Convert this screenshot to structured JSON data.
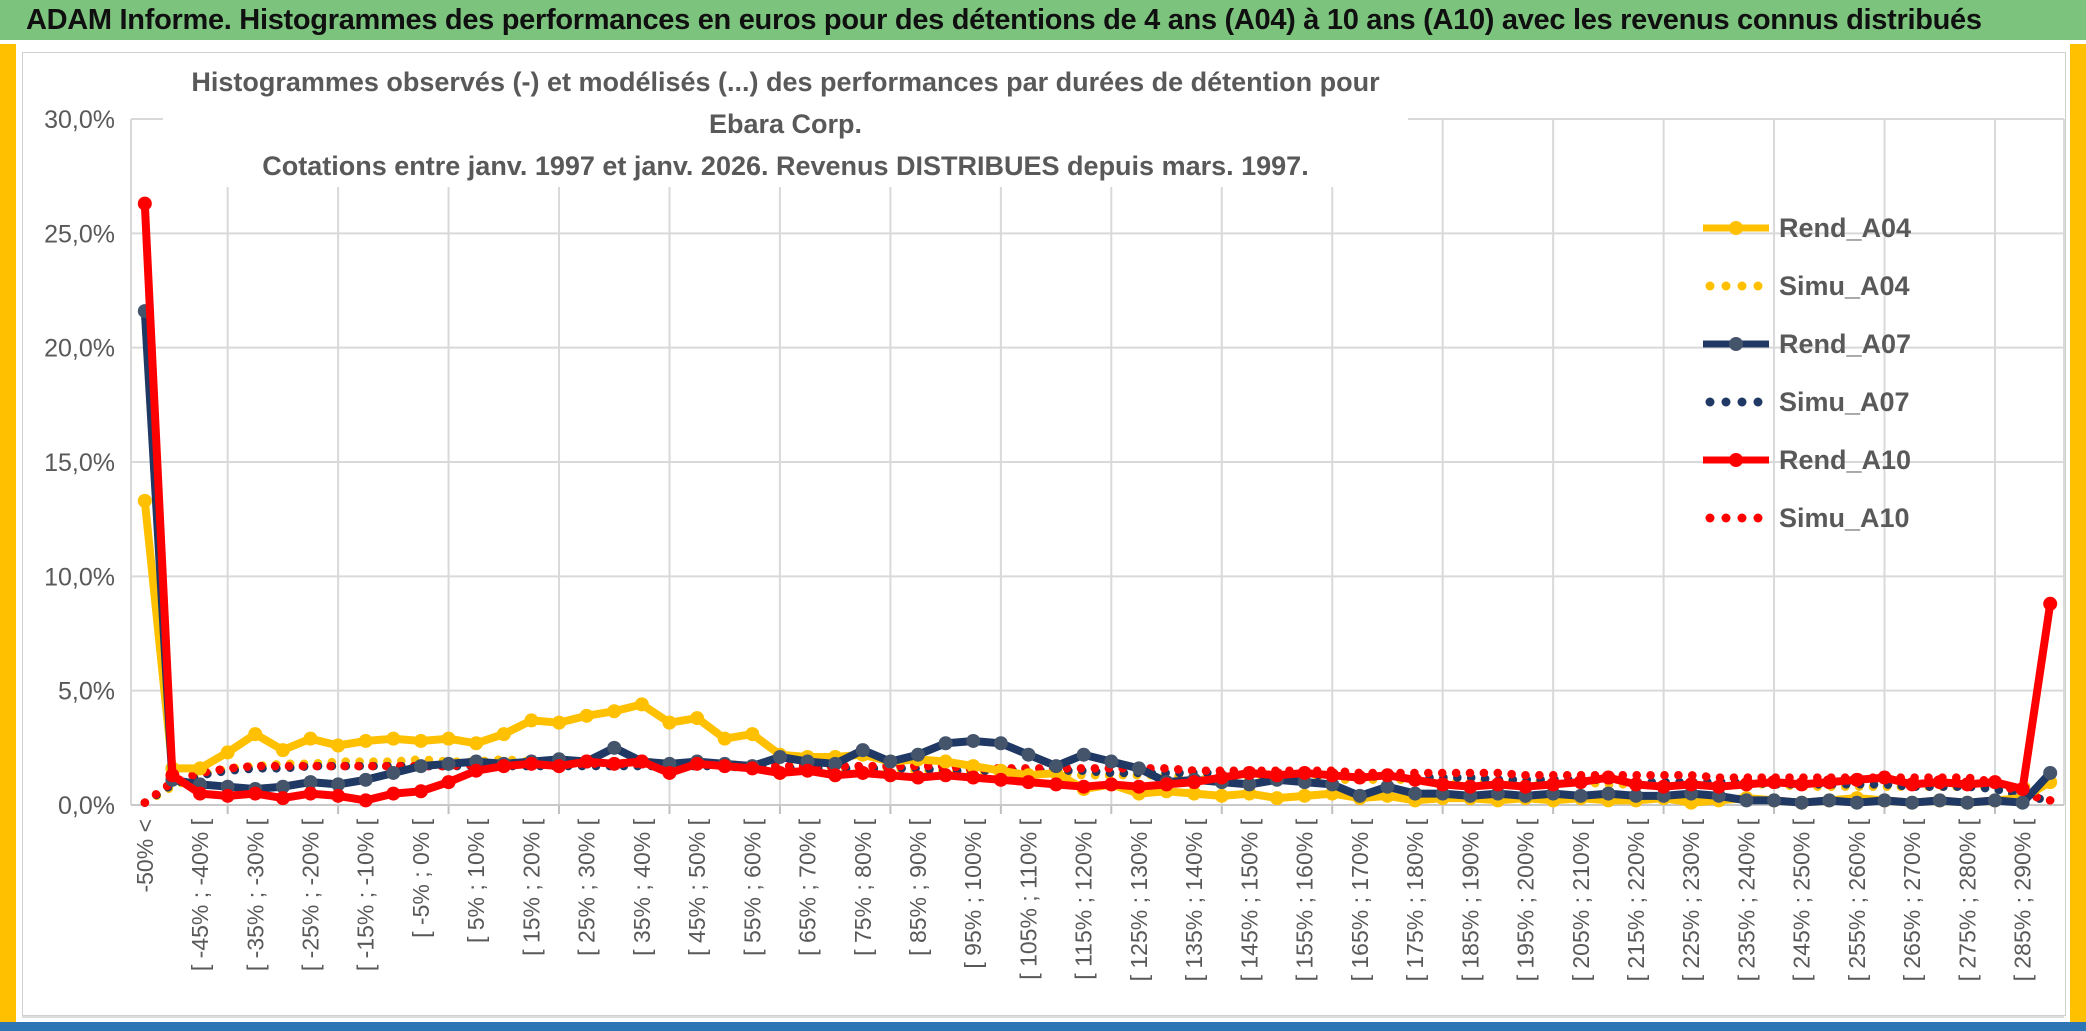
{
  "header": {
    "title": "ADAM Informe. Histogrammes des performances en euros pour des détentions de 4 ans (A04) à 10 ans (A10) avec les revenus connus distribués"
  },
  "chart": {
    "title_line1": "Histogrammes observés (-) et modélisés (...) des performances par durées de détention pour Ebara Corp.",
    "title_line2": "Cotations entre janv. 1997 et janv. 2026. Revenus DISTRIBUES depuis mars. 1997."
  },
  "colors": {
    "header_bg": "#7CC47E",
    "edge_strip": "#FFC000",
    "bottom_bar": "#2E75B6",
    "grid": "#D9D9D9",
    "axis_text": "#595959",
    "yellow": "#FFC000",
    "navy": "#1F3864",
    "navy_marker": "#44546A",
    "red": "#FF0000"
  },
  "chart_data": {
    "type": "line",
    "title": "Histogrammes observés (-) et modélisés (...) des performances par durées de détention pour Ebara Corp. Cotations entre janv. 1997 et janv. 2026. Revenus DISTRIBUES depuis mars. 1997.",
    "legend_position": "right",
    "grid": true,
    "n_bins": 70,
    "y_axis": {
      "min": 0,
      "max": 30,
      "step": 5,
      "unit": "%",
      "tick_labels": [
        "0,0%",
        "5,0%",
        "10,0%",
        "15,0%",
        "20,0%",
        "25,0%",
        "30,0%"
      ]
    },
    "x_axis": {
      "label_interval": 2,
      "tick_labels": [
        "-50% <",
        "[ -45% ; -40% [",
        "[ -35% ; -30% [",
        "[ -25% ; -20% [",
        "[ -15% ; -10% [",
        "[ -5% ; 0% [",
        "[ 5% ; 10% [",
        "[ 15% ; 20% [",
        "[ 25% ; 30% [",
        "[ 35% ; 40% [",
        "[ 45% ; 50% [",
        "[ 55% ; 60% [",
        "[ 65% ; 70% [",
        "[ 75% ; 80% [",
        "[ 85% ; 90% [",
        "[ 95% ; 100% [",
        "[ 105% ; 110% [",
        "[ 115% ; 120% [",
        "[ 125% ; 130% [",
        "[ 135% ; 140% [",
        "[ 145% ; 150% [",
        "[ 155% ; 160% [",
        "[ 165% ; 170% [",
        "[ 175% ; 180% [",
        "[ 185% ; 190% [",
        "[ 195% ; 200% [",
        "[ 205% ; 210% [",
        "[ 215% ; 220% [",
        "[ 225% ; 230% [",
        "[ 235% ; 240% [",
        "[ 245% ; 250% [",
        "[ 255% ; 260% [",
        "[ 265% ; 270% [",
        "[ 275% ; 280% [",
        "[ 285% ; 290% ["
      ]
    },
    "series": [
      {
        "name": "Rend_A04",
        "color": "#FFC000",
        "marker_color": "#FFC000",
        "line_style": "solid",
        "values": [
          13.3,
          1.6,
          1.6,
          2.3,
          3.1,
          2.4,
          2.9,
          2.6,
          2.8,
          2.9,
          2.8,
          2.9,
          2.7,
          3.1,
          3.7,
          3.6,
          3.9,
          4.1,
          4.4,
          3.6,
          3.8,
          2.9,
          3.1,
          2.2,
          2.1,
          2.1,
          2.2,
          1.9,
          2.0,
          1.9,
          1.7,
          1.5,
          1.3,
          1.4,
          0.7,
          0.9,
          0.5,
          0.6,
          0.5,
          0.4,
          0.5,
          0.3,
          0.4,
          0.5,
          0.3,
          0.4,
          0.2,
          0.3,
          0.3,
          0.2,
          0.3,
          0.2,
          0.3,
          0.2,
          0.2,
          0.3,
          0.1,
          0.2,
          0.3,
          0.2,
          0.1,
          0.2,
          0.3,
          0.2,
          0.1,
          0.2,
          0.1,
          0.2,
          0.3,
          1.0
        ]
      },
      {
        "name": "Simu_A04",
        "color": "#FFC000",
        "line_style": "dotted",
        "values": [
          0.1,
          0.8,
          1.3,
          1.6,
          1.7,
          1.8,
          1.8,
          1.9,
          1.9,
          1.9,
          2.0,
          1.9,
          1.9,
          2.0,
          1.9,
          1.9,
          1.9,
          1.8,
          1.9,
          1.8,
          1.8,
          1.8,
          1.7,
          1.7,
          1.7,
          1.6,
          1.6,
          1.6,
          1.5,
          1.5,
          1.5,
          1.4,
          1.4,
          1.4,
          1.3,
          1.3,
          1.3,
          1.3,
          1.2,
          1.2,
          1.2,
          1.2,
          1.1,
          1.1,
          1.1,
          1.1,
          1.1,
          1.0,
          1.0,
          1.0,
          1.0,
          1.0,
          1.0,
          0.9,
          0.9,
          0.9,
          0.9,
          0.9,
          0.9,
          0.9,
          0.8,
          0.8,
          0.8,
          0.8,
          0.8,
          0.8,
          0.8,
          0.8,
          0.8,
          0.9
        ]
      },
      {
        "name": "Rend_A07",
        "color": "#1F3864",
        "marker_color": "#44546A",
        "line_style": "solid",
        "values": [
          21.6,
          1.1,
          0.9,
          0.8,
          0.7,
          0.8,
          1.0,
          0.9,
          1.1,
          1.4,
          1.7,
          1.8,
          1.9,
          1.8,
          1.9,
          2.0,
          1.9,
          2.5,
          1.9,
          1.8,
          1.9,
          1.8,
          1.7,
          2.1,
          1.9,
          1.8,
          2.4,
          1.9,
          2.2,
          2.7,
          2.8,
          2.7,
          2.2,
          1.7,
          2.2,
          1.9,
          1.6,
          1.0,
          1.1,
          1.0,
          0.9,
          1.1,
          1.0,
          0.9,
          0.4,
          0.8,
          0.5,
          0.5,
          0.4,
          0.5,
          0.4,
          0.5,
          0.4,
          0.5,
          0.4,
          0.4,
          0.5,
          0.4,
          0.2,
          0.2,
          0.1,
          0.2,
          0.1,
          0.2,
          0.1,
          0.2,
          0.1,
          0.2,
          0.1,
          1.4
        ]
      },
      {
        "name": "Simu_A07",
        "color": "#1F3864",
        "line_style": "dotted",
        "values": [
          0.1,
          0.9,
          1.3,
          1.5,
          1.6,
          1.6,
          1.7,
          1.7,
          1.7,
          1.7,
          1.7,
          1.7,
          1.7,
          1.7,
          1.7,
          1.7,
          1.7,
          1.7,
          1.7,
          1.7,
          1.7,
          1.7,
          1.6,
          1.6,
          1.6,
          1.6,
          1.6,
          1.6,
          1.6,
          1.5,
          1.5,
          1.5,
          1.5,
          1.5,
          1.5,
          1.4,
          1.4,
          1.4,
          1.4,
          1.4,
          1.3,
          1.3,
          1.3,
          1.3,
          1.3,
          1.2,
          1.2,
          1.2,
          1.2,
          1.1,
          1.1,
          1.1,
          1.1,
          1.1,
          1.0,
          1.0,
          1.0,
          1.0,
          1.0,
          0.9,
          0.9,
          0.9,
          0.9,
          0.9,
          0.8,
          0.8,
          0.8,
          0.7,
          0.4,
          0.2
        ]
      },
      {
        "name": "Rend_A10",
        "color": "#FF0000",
        "marker_color": "#FF0000",
        "line_style": "solid",
        "values": [
          26.3,
          1.3,
          0.5,
          0.4,
          0.5,
          0.3,
          0.5,
          0.4,
          0.2,
          0.5,
          0.6,
          1.0,
          1.5,
          1.7,
          1.8,
          1.7,
          1.9,
          1.8,
          1.9,
          1.4,
          1.8,
          1.7,
          1.6,
          1.4,
          1.5,
          1.3,
          1.4,
          1.3,
          1.2,
          1.3,
          1.2,
          1.1,
          1.0,
          0.9,
          0.8,
          0.9,
          0.8,
          0.9,
          1.0,
          1.2,
          1.4,
          1.3,
          1.4,
          1.3,
          1.2,
          1.3,
          1.1,
          0.9,
          0.8,
          0.9,
          0.8,
          0.9,
          1.0,
          1.2,
          0.9,
          0.8,
          0.9,
          0.8,
          0.9,
          1.0,
          0.9,
          1.0,
          1.1,
          1.2,
          0.9,
          1.0,
          0.9,
          1.0,
          0.7,
          8.8
        ]
      },
      {
        "name": "Simu_A10",
        "color": "#FF0000",
        "line_style": "dotted",
        "values": [
          0.1,
          1.0,
          1.4,
          1.6,
          1.7,
          1.7,
          1.7,
          1.7,
          1.7,
          1.7,
          1.7,
          1.7,
          1.8,
          1.8,
          1.8,
          1.8,
          1.8,
          1.8,
          1.8,
          1.8,
          1.8,
          1.7,
          1.7,
          1.7,
          1.7,
          1.7,
          1.7,
          1.7,
          1.7,
          1.7,
          1.6,
          1.6,
          1.6,
          1.6,
          1.6,
          1.6,
          1.6,
          1.6,
          1.5,
          1.5,
          1.5,
          1.5,
          1.5,
          1.5,
          1.4,
          1.4,
          1.4,
          1.4,
          1.4,
          1.4,
          1.3,
          1.3,
          1.3,
          1.3,
          1.3,
          1.3,
          1.3,
          1.2,
          1.2,
          1.2,
          1.2,
          1.2,
          1.2,
          1.2,
          1.2,
          1.2,
          1.2,
          1.0,
          0.5,
          0.2
        ]
      }
    ]
  }
}
